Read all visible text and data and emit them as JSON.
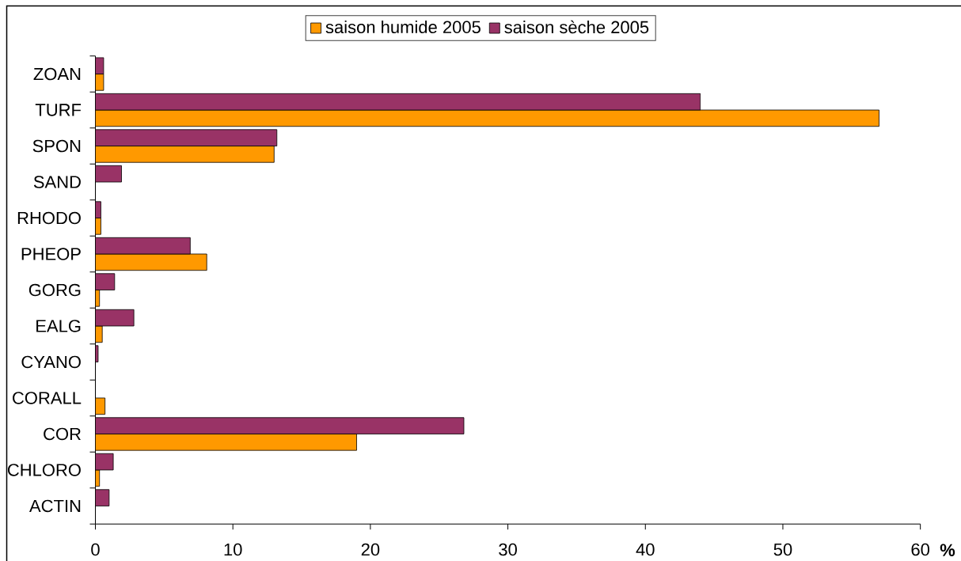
{
  "chart_data": {
    "type": "bar",
    "orientation": "horizontal",
    "categories": [
      "ZOAN",
      "TURF",
      "SPON",
      "SAND",
      "RHODO",
      "PHEOP",
      "GORG",
      "EALG",
      "CYANO",
      "CORALL",
      "COR",
      "CHLORO",
      "ACTIN"
    ],
    "series": [
      {
        "name": "saison humide 2005",
        "color": "#ff9900",
        "values": [
          0.6,
          57,
          13,
          null,
          0.4,
          8.1,
          0.3,
          0.5,
          null,
          0.7,
          19,
          0.3,
          null
        ]
      },
      {
        "name": "saison sèche 2005",
        "color": "#993366",
        "values": [
          0.6,
          44,
          13.2,
          1.9,
          0.4,
          6.9,
          1.4,
          2.8,
          0.2,
          null,
          26.8,
          1.3,
          1.0
        ]
      }
    ],
    "xlabel": "%",
    "xlim": [
      0,
      60
    ],
    "xticks": [
      0,
      10,
      20,
      30,
      40,
      50,
      60
    ],
    "legend": "top"
  }
}
